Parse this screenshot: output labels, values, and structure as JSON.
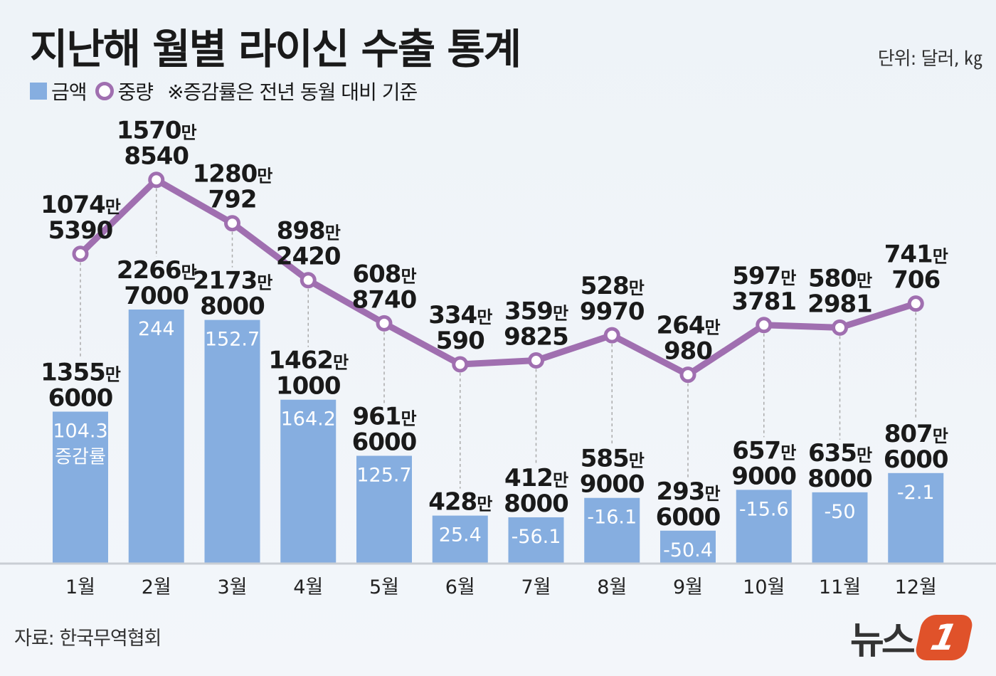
{
  "title": "지난해 월별 라이신 수출 통계",
  "unit": "단위: 달러, ㎏",
  "legend": {
    "amount": "금액",
    "weight": "중량",
    "note": "※증감률은 전년 동월 대비 기준"
  },
  "source": "자료: 한국무역협회",
  "logo": {
    "text": "뉴스",
    "mark": "1"
  },
  "colors": {
    "bar": "#86aee0",
    "line": "#a06fb0",
    "growth_text": "#ffffff"
  },
  "chart_data": {
    "type": "bar+line",
    "categories": [
      "1월",
      "2월",
      "3월",
      "4월",
      "5월",
      "6월",
      "7월",
      "8월",
      "9월",
      "10월",
      "11월",
      "12월"
    ],
    "series": [
      {
        "name": "금액",
        "type": "bar",
        "unit": "달러",
        "values": [
          13556000,
          22667000,
          21738000,
          14621000,
          9616000,
          4280000,
          4128000,
          5859000,
          2936000,
          6579000,
          6358000,
          8076000
        ],
        "labels": [
          [
            "1355",
            "6000"
          ],
          [
            "2266",
            "7000"
          ],
          [
            "2173",
            "8000"
          ],
          [
            "1462",
            "1000"
          ],
          [
            "961",
            "6000"
          ],
          [
            "428",
            ""
          ],
          [
            "412",
            "8000"
          ],
          [
            "585",
            "9000"
          ],
          [
            "293",
            "6000"
          ],
          [
            "657",
            "9000"
          ],
          [
            "635",
            "8000"
          ],
          [
            "807",
            "6000"
          ]
        ]
      },
      {
        "name": "중량",
        "type": "line",
        "unit": "kg",
        "values": [
          10745390,
          15708540,
          12800792,
          8982420,
          6088740,
          3340590,
          3599825,
          5289970,
          2640980,
          5973781,
          5802981,
          7410706
        ],
        "labels": [
          [
            "1074",
            "5390"
          ],
          [
            "1570",
            "8540"
          ],
          [
            "1280",
            "792"
          ],
          [
            "898",
            "2420"
          ],
          [
            "608",
            "8740"
          ],
          [
            "334",
            "590"
          ],
          [
            "359",
            "9825"
          ],
          [
            "528",
            "9970"
          ],
          [
            "264",
            "980"
          ],
          [
            "597",
            "3781"
          ],
          [
            "580",
            "2981"
          ],
          [
            "741",
            "706"
          ]
        ]
      }
    ],
    "growth_rate": [
      "104.3",
      "244",
      "152.7",
      "164.2",
      "125.7",
      "25.4",
      "-56.1",
      "-16.1",
      "-50.4",
      "-15.6",
      "-50",
      "-2.1"
    ],
    "growth_label": "증감률",
    "man_unit": "만"
  }
}
